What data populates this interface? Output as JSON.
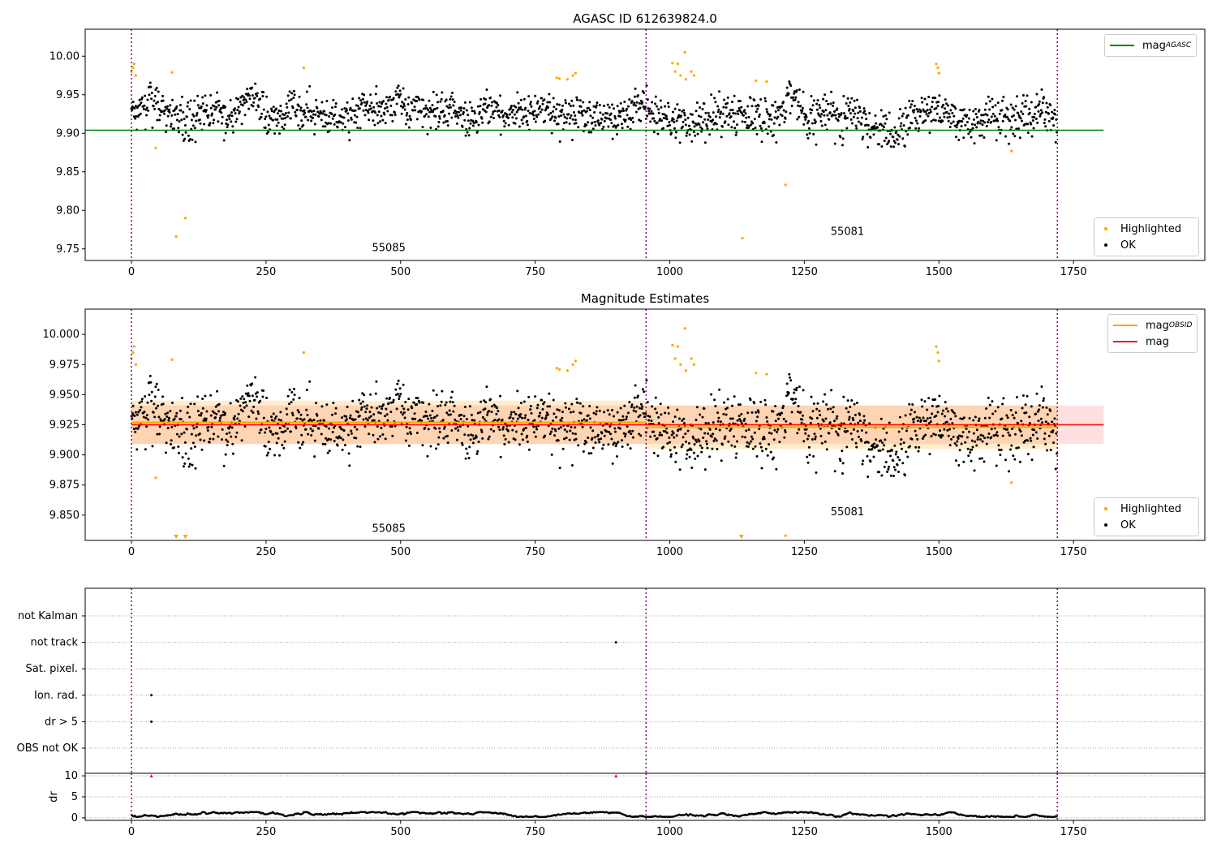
{
  "chart_data": [
    {
      "type": "scatter",
      "title": "AGASC ID 612639824.0",
      "xlim": [
        -86,
        1994
      ],
      "ylim": [
        9.735,
        10.035
      ],
      "xticks": [
        0,
        250,
        500,
        750,
        1000,
        1250,
        1500,
        1750
      ],
      "yticks": [
        9.75,
        9.8,
        9.85,
        9.9,
        9.95,
        10.0
      ],
      "ytick_labels": [
        "9.75",
        "9.80",
        "9.85",
        "9.90",
        "9.95",
        "10.00"
      ],
      "hline": {
        "name": "mag_AGASC",
        "label": "mag",
        "sub": "AGASC",
        "value": 9.904,
        "color": "#008000",
        "x": [
          -86,
          1806
        ]
      },
      "legend_top": [
        {
          "label": "mag",
          "sub": "AGASC"
        }
      ],
      "legend_bottom": [
        {
          "label": "Highlighted",
          "color": "#ffa500"
        },
        {
          "label": "OK",
          "color": "#000000"
        }
      ],
      "obsid_boundaries": [
        0,
        956,
        1720
      ],
      "obsid_labels": [
        {
          "text": "55085",
          "x": 478,
          "y": 9.747
        },
        {
          "text": "55081",
          "x": 1330,
          "y": 9.768
        }
      ]
    },
    {
      "type": "scatter",
      "title": "Magnitude Estimates",
      "xlim": [
        -86,
        1994
      ],
      "ylim": [
        9.829,
        10.021
      ],
      "xticks": [
        0,
        250,
        500,
        750,
        1000,
        1250,
        1500,
        1750
      ],
      "yticks": [
        9.85,
        9.875,
        9.9,
        9.925,
        9.95,
        9.975,
        10.0
      ],
      "ytick_labels": [
        "9.850",
        "9.875",
        "9.900",
        "9.925",
        "9.950",
        "9.975",
        "10.000"
      ],
      "mag": {
        "value": 9.925,
        "band": [
          9.909,
          9.941
        ],
        "x": [
          0,
          1806
        ],
        "color": "#ff0000"
      },
      "mag_obsid": [
        {
          "x": [
            0,
            956
          ],
          "value": 9.927,
          "band": [
            9.909,
            9.945
          ]
        },
        {
          "x": [
            956,
            1720
          ],
          "value": 9.923,
          "band": [
            9.905,
            9.941
          ]
        }
      ],
      "legend_top": [
        {
          "label": "mag",
          "sub": "OBSID",
          "color": "#ffa500"
        },
        {
          "label": "mag",
          "color": "#ff0000"
        }
      ],
      "legend_bottom": [
        {
          "label": "Highlighted",
          "color": "#ffa500"
        },
        {
          "label": "OK",
          "color": "#000000"
        }
      ],
      "offscale_low": [
        83,
        100,
        1133
      ],
      "obsid_labels": [
        {
          "text": "55085",
          "x": 478,
          "y": 9.836
        },
        {
          "text": "55081",
          "x": 1330,
          "y": 9.85
        }
      ]
    },
    {
      "type": "scatter",
      "title": "",
      "categories": [
        "OBS not OK",
        "dr > 5",
        "Ion. rad.",
        "Sat. pixel.",
        "not track",
        "not Kalman"
      ],
      "points": [
        {
          "x": 900,
          "cat": 4
        },
        {
          "x": 37,
          "cat": 2
        },
        {
          "x": 37,
          "cat": 1
        }
      ]
    },
    {
      "type": "scatter",
      "ylabel": "dr",
      "ylim": [
        -0.6,
        10.6
      ],
      "yticks": [
        0,
        5,
        10
      ],
      "ytick_labels": [
        "0",
        "5",
        "10"
      ],
      "xticks": [
        0,
        250,
        500,
        750,
        1000,
        1250,
        1500,
        1750
      ],
      "clipped_high": [
        37,
        900
      ],
      "typical_dr": [
        0.3,
        1.3
      ]
    }
  ],
  "series_model": {
    "n": 1720,
    "segments": [
      {
        "x": [
          0,
          956
        ],
        "mean": 9.927,
        "std": 0.015
      },
      {
        "x": [
          956,
          1720
        ],
        "mean": 9.923,
        "std": 0.016
      }
    ],
    "highlighted": [
      [
        0,
        9.98
      ],
      [
        3,
        9.985
      ],
      [
        5,
        9.99
      ],
      [
        8,
        9.975
      ],
      [
        45,
        9.881
      ],
      [
        75,
        9.979
      ],
      [
        83,
        9.766
      ],
      [
        100,
        9.79
      ],
      [
        320,
        9.985
      ],
      [
        790,
        9.972
      ],
      [
        795,
        9.971
      ],
      [
        810,
        9.97
      ],
      [
        820,
        9.975
      ],
      [
        825,
        9.978
      ],
      [
        1005,
        9.991
      ],
      [
        1010,
        9.98
      ],
      [
        1015,
        9.99
      ],
      [
        1020,
        9.975
      ],
      [
        1028,
        10.005
      ],
      [
        1030,
        9.97
      ],
      [
        1040,
        9.98
      ],
      [
        1045,
        9.975
      ],
      [
        1135,
        9.764
      ],
      [
        1160,
        9.968
      ],
      [
        1180,
        9.967
      ],
      [
        1215,
        9.833
      ],
      [
        1495,
        9.99
      ],
      [
        1498,
        9.985
      ],
      [
        1500,
        9.978
      ],
      [
        1635,
        9.877
      ]
    ]
  }
}
